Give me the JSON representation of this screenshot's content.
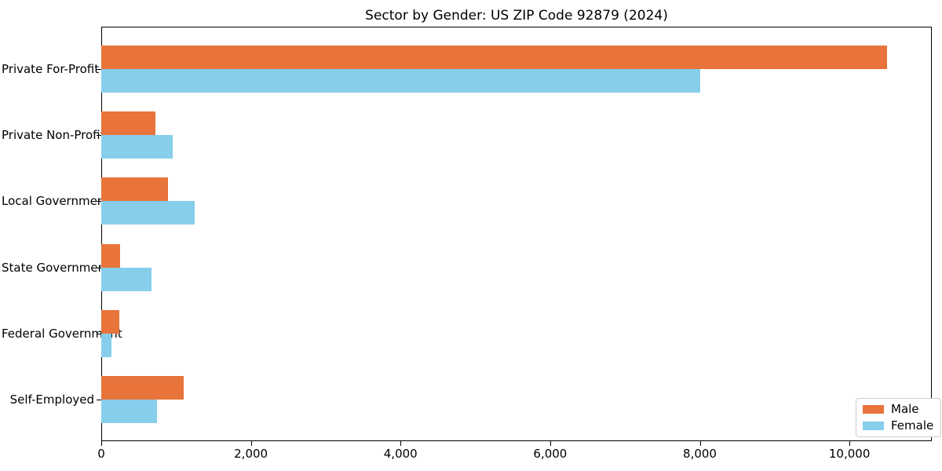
{
  "chart_data": {
    "type": "bar",
    "orientation": "horizontal",
    "title": "Sector by Gender: US ZIP Code 92879 (2024)",
    "categories": [
      "Private For-Profit",
      "Private Non-Profit",
      "Local Government",
      "State Government",
      "Federal Government",
      "Self-Employed"
    ],
    "series": [
      {
        "name": "Male",
        "color": "#e8743b",
        "values": [
          10500,
          720,
          890,
          250,
          240,
          1100
        ]
      },
      {
        "name": "Female",
        "color": "#87ceeb",
        "values": [
          8000,
          950,
          1250,
          670,
          140,
          740
        ]
      }
    ],
    "xlabel": "",
    "ylabel": "",
    "xlim": [
      0,
      11100
    ],
    "xticks": [
      {
        "value": 0,
        "label": "0"
      },
      {
        "value": 2000,
        "label": "2,000"
      },
      {
        "value": 4000,
        "label": "4,000"
      },
      {
        "value": 6000,
        "label": "6,000"
      },
      {
        "value": 8000,
        "label": "8,000"
      },
      {
        "value": 10000,
        "label": "10,000"
      }
    ],
    "grid": false,
    "legend": {
      "position": "lower right",
      "items": [
        {
          "label": "Male"
        },
        {
          "label": "Female"
        }
      ]
    }
  }
}
